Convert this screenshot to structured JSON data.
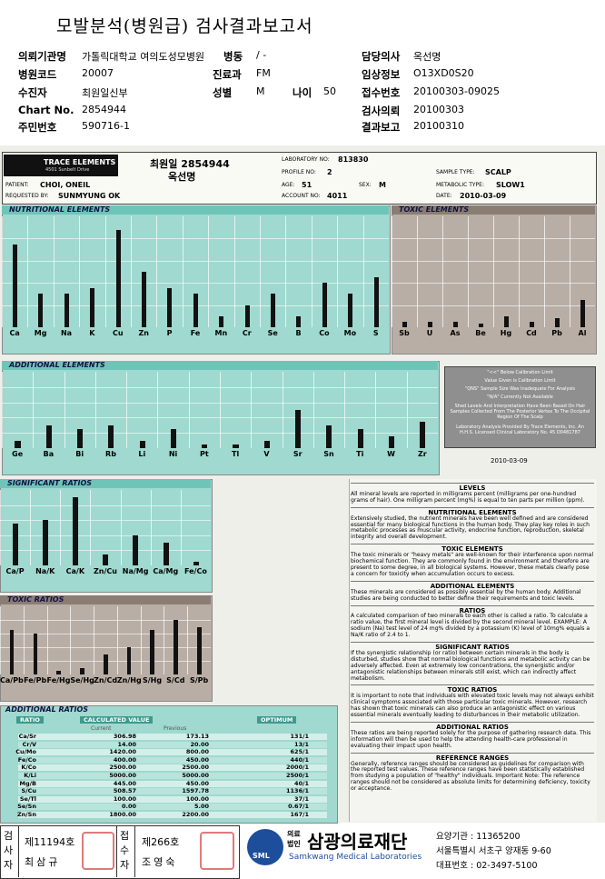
{
  "header": {
    "title": "모발분석(병원급) 검사결과보고서",
    "fields": [
      {
        "label": "의뢰기관명",
        "value": "가톨릭대학교 여의도성모병원"
      },
      {
        "label": "병동",
        "value": "/ -"
      },
      {
        "label": "담당의사",
        "value": "옥선명"
      },
      {
        "label": "병원코드",
        "value": "20007"
      },
      {
        "label": "진료과",
        "value": "FM"
      },
      {
        "label": "임상정보",
        "value": "O13XD0S20"
      },
      {
        "label": "수진자",
        "value": "최원일신부"
      },
      {
        "label": "성별",
        "value": "M"
      },
      {
        "label": "나이",
        "value": "50"
      },
      {
        "label": "접수번호",
        "value": "20100303-09025"
      },
      {
        "label": "Chart No.",
        "value": "2854944"
      },
      {
        "label": "검사의뢰",
        "value": "20100303"
      },
      {
        "label": "주민번호",
        "value": "590716-1"
      },
      {
        "label": "결과보고",
        "value": "20100310"
      }
    ]
  },
  "lab": {
    "logo": "TRACE ELEMENTS",
    "address": "4501 Sunbelt Drive",
    "patient_id": "최원일 2854944",
    "doctor": "옥선명",
    "fields": [
      {
        "label": "LABORATORY NO:",
        "value": "813830"
      },
      {
        "label": "PROFILE NO:",
        "value": "2"
      },
      {
        "label": "SAMPLE TYPE:",
        "value": "SCALP"
      },
      {
        "label": "PATIENT:",
        "value": "CHOI, ONEIL"
      },
      {
        "label": "AGE:",
        "value": "51"
      },
      {
        "label": "SEX:",
        "value": "M"
      },
      {
        "label": "METABOLIC TYPE:",
        "value": "SLOW1"
      },
      {
        "label": "REQUESTED BY:",
        "value": "SUNMYUNG OK"
      },
      {
        "label": "ACCOUNT NO:",
        "value": "4011"
      },
      {
        "label": "DATE:",
        "value": "2010-03-09"
      }
    ]
  },
  "nutritional": {
    "title": "NUTRITIONAL ELEMENTS",
    "elements": [
      "Ca",
      "Mg",
      "Na",
      "K",
      "Cu",
      "Zn",
      "P",
      "Fe",
      "Mn",
      "Cr",
      "Se",
      "B",
      "Co",
      "Mo",
      "S"
    ],
    "levels": [
      75,
      30,
      30,
      35,
      88,
      50,
      35,
      30,
      10,
      20,
      30,
      10,
      40,
      30,
      45
    ]
  },
  "toxic": {
    "title": "TOXIC ELEMENTS",
    "elements": [
      "Sb",
      "U",
      "As",
      "Be",
      "Hg",
      "Cd",
      "Pb",
      "Al"
    ],
    "levels": [
      5,
      5,
      5,
      3,
      10,
      5,
      8,
      25
    ]
  },
  "additional": {
    "title": "ADDITIONAL ELEMENTS",
    "elements": [
      "Ge",
      "Ba",
      "Bi",
      "Rb",
      "Li",
      "Ni",
      "Pt",
      "Tl",
      "V",
      "Sr",
      "Sn",
      "Ti",
      "W",
      "Zr"
    ],
    "levels": [
      10,
      30,
      25,
      30,
      10,
      25,
      5,
      5,
      10,
      50,
      30,
      25,
      15,
      35
    ]
  },
  "significant_ratios": {
    "title": "SIGNIFICANT RATIOS",
    "ratios": [
      "Ca/P",
      "Na/K",
      "Ca/K",
      "Zn/Cu",
      "Na/Mg",
      "Ca/Mg",
      "Fe/Co"
    ],
    "levels": [
      55,
      60,
      90,
      15,
      40,
      30,
      5
    ]
  },
  "toxic_ratios": {
    "title": "TOXIC RATIOS",
    "ratios": [
      "Ca/Pb",
      "Fe/Pb",
      "Fe/Hg",
      "Se/Hg",
      "Zn/Cd",
      "Zn/Hg",
      "S/Hg",
      "S/Cd",
      "S/Pb"
    ],
    "levels": [
      65,
      60,
      5,
      10,
      30,
      40,
      65,
      80,
      70
    ]
  },
  "additional_ratios": {
    "title": "ADDITIONAL RATIOS",
    "columns": [
      "RATIO",
      "CALCULATED VALUE",
      "OPTIMUM"
    ],
    "subcolumns": [
      "Current",
      "Previous"
    ],
    "rows": [
      [
        "Ca/Sr",
        "306.98",
        "173.13",
        "131/1"
      ],
      [
        "Cr/V",
        "14.00",
        "20.00",
        "13/1"
      ],
      [
        "Cu/Mo",
        "1420.00",
        "800.00",
        "625/1"
      ],
      [
        "Fe/Co",
        "400.00",
        "450.00",
        "440/1"
      ],
      [
        "K/Co",
        "2500.00",
        "2500.00",
        "2000/1"
      ],
      [
        "K/Li",
        "5000.00",
        "5000.00",
        "2500/1"
      ],
      [
        "Mg/B",
        "445.00",
        "450.00",
        "40/1"
      ],
      [
        "S/Cu",
        "508.57",
        "1597.78",
        "1136/1"
      ],
      [
        "Se/Tl",
        "100.00",
        "100.00",
        "37/1"
      ],
      [
        "Se/Sn",
        "0.00",
        "5.00",
        "0.67/1"
      ],
      [
        "Zn/Sn",
        "1800.00",
        "2200.00",
        "167/1"
      ]
    ]
  },
  "notes": {
    "lines": [
      "\"<<\" Below Calibration Limit",
      "Value Given is Calibration Limit",
      "\"QNS\" Sample Size Was Inadequate For Analysis",
      "\"N/A\" Currently Not Available"
    ],
    "paragraph": "Shed Levels And Interpretation Have Been Based On Hair Samples Collected From The Posterior Vertex To The Occipital Region Of The Scalp",
    "provider": "Laboratory Analysis Provided By Trace Elements, Inc. An H.H.S. Licensed Clinical Laboratory No. 45 D0481787",
    "date": "2010-03-09"
  },
  "info": [
    {
      "heading": "LEVELS",
      "text": "All mineral levels are reported in milligrams percent (milligrams per one-hundred grams of hair). One milligram percent (mg%) is equal to ten parts per million (ppm)."
    },
    {
      "heading": "NUTRITIONAL ELEMENTS",
      "text": "Extensively studied, the nutrient minerals have been well defined and are considered essential for many biological functions in the human body. They play key roles in such metabolic processes as muscular activity, endocrine function, reproduction, skeletal integrity and overall development."
    },
    {
      "heading": "TOXIC ELEMENTS",
      "text": "The toxic minerals or \"heavy metals\" are well-known for their interference upon normal biochemical function. They are commonly found in the environment and therefore are present to some degree, in all biological systems. However, these metals clearly pose a concern for toxicity when accumulation occurs to excess."
    },
    {
      "heading": "ADDITIONAL ELEMENTS",
      "text": "These minerals are considered as possibly essential by the human body. Additional studies are being conducted to better define their requirements and toxic levels."
    },
    {
      "heading": "RATIOS",
      "text": "A calculated comparison of two minerals to each other is called a ratio. To calculate a ratio value, the first mineral level is divided by the second mineral level. EXAMPLE: A sodium (Na) test level of 24 mg% divided by a potassium (K) level of 10mg% equals a Na/K ratio of 2.4 to 1."
    },
    {
      "heading": "SIGNIFICANT RATIOS",
      "text": "If the synergistic relationship (or ratio) between certain minerals in the body is disturbed, studies show that normal biological functions and metabolic activity can be adversely affected. Even at extremely low concentrations, the synergistic and/or antagonistic relationships between minerals still exist, which can indirectly affect metabolism."
    },
    {
      "heading": "TOXIC RATIOS",
      "text": "It is important to note that individuals with elevated toxic levels may not always exhibit clinical symptoms associated with those particular toxic minerals. However, research has shown that toxic minerals can also produce an antagonistic effect on various essential minerals eventually leading to disturbances in their metabolic utilization."
    },
    {
      "heading": "ADDITIONAL RATIOS",
      "text": "These ratios are being reported solely for the purpose of gathering research data. This information will then be used to help the attending health-care professional in evaluating their impact upon health."
    },
    {
      "heading": "REFERENCE RANGES",
      "text": "Generally, reference ranges should be considered as guidelines for comparison with the reported test values. These reference ranges have been statistically established from studying a population of \"healthy\" individuals. Important Note: The reference ranges should not be considered as absolute limits for determining deficiency, toxicity or acceptance."
    }
  ],
  "footer": {
    "tester_label": "검사자",
    "tester_no": "제11194호",
    "tester": "최삼규",
    "receiver_label": "접수자",
    "receiver_no": "제266호",
    "receiver": "조영숙",
    "corp": "의료법인",
    "org": "삼광의료재단",
    "org_en": "Samkwang Medical Laboratories",
    "logo": "SML",
    "code": "요양기관 : 11365200",
    "address": "서울특별시 서초구 양재동 9-60",
    "phone": "대표번호 : 02-3497-5100"
  }
}
